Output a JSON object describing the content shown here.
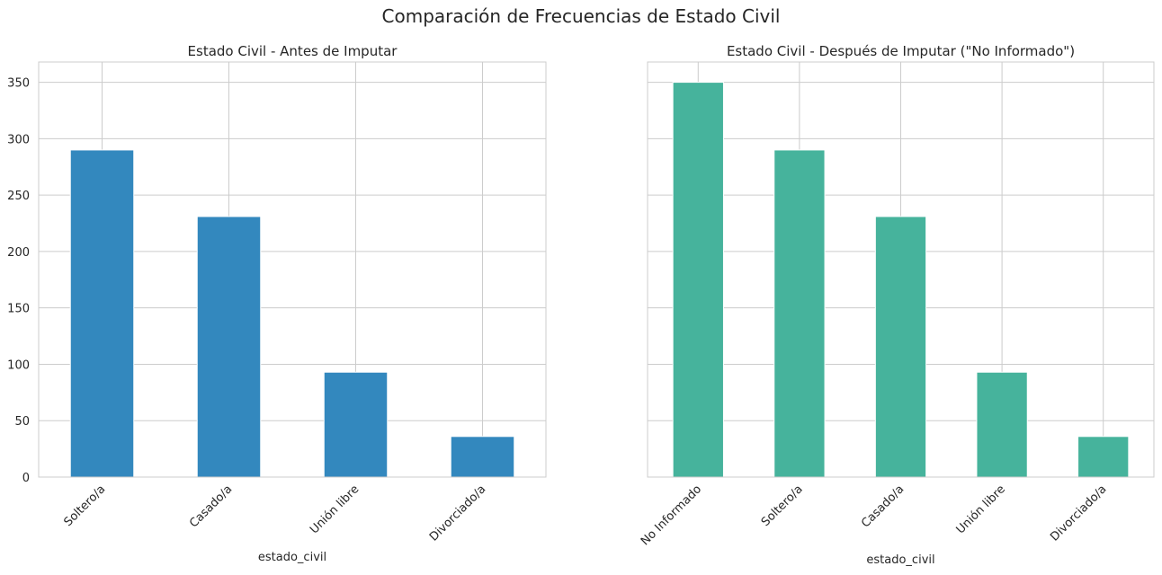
{
  "figure": {
    "suptitle": "Comparación de Frecuencias de Estado Civil"
  },
  "chart_data": [
    {
      "type": "bar",
      "title": "Estado Civil - Antes de Imputar",
      "xlabel": "estado_civil",
      "ylabel": "",
      "categories": [
        "Soltero/a",
        "Casado/a",
        "Unión libre",
        "Divorciado/a"
      ],
      "values": [
        290,
        231,
        93,
        36
      ],
      "ylim": [
        0,
        368
      ],
      "yticks": [
        0,
        50,
        100,
        150,
        200,
        250,
        300,
        350
      ],
      "color": "#3388be",
      "grid": true,
      "show_yticklabels": true
    },
    {
      "type": "bar",
      "title": "Estado Civil - Después de Imputar (\"No Informado\")",
      "xlabel": "estado_civil",
      "ylabel": "",
      "categories": [
        "No Informado",
        "Soltero/a",
        "Casado/a",
        "Unión libre",
        "Divorciado/a"
      ],
      "values": [
        350,
        290,
        231,
        93,
        36
      ],
      "ylim": [
        0,
        368
      ],
      "yticks": [
        0,
        50,
        100,
        150,
        200,
        250,
        300,
        350
      ],
      "color": "#46b39c",
      "grid": true,
      "show_yticklabels": false
    }
  ]
}
